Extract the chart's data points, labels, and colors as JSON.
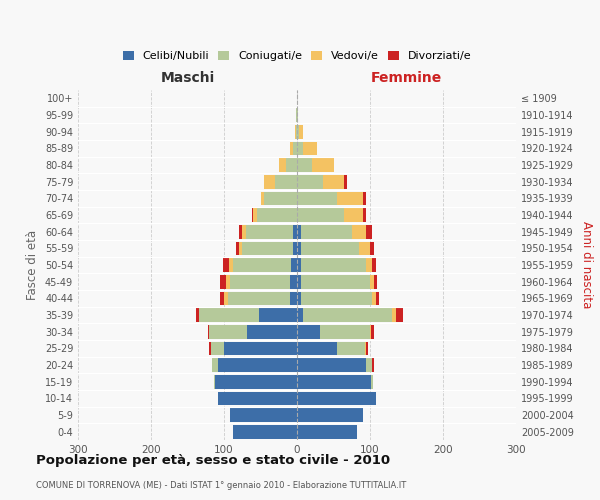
{
  "age_groups": [
    "0-4",
    "5-9",
    "10-14",
    "15-19",
    "20-24",
    "25-29",
    "30-34",
    "35-39",
    "40-44",
    "45-49",
    "50-54",
    "55-59",
    "60-64",
    "65-69",
    "70-74",
    "75-79",
    "80-84",
    "85-89",
    "90-94",
    "95-99",
    "100+"
  ],
  "birth_years": [
    "2005-2009",
    "2000-2004",
    "1995-1999",
    "1990-1994",
    "1985-1989",
    "1980-1984",
    "1975-1979",
    "1970-1974",
    "1965-1969",
    "1960-1964",
    "1955-1959",
    "1950-1954",
    "1945-1949",
    "1940-1944",
    "1935-1939",
    "1930-1934",
    "1925-1929",
    "1920-1924",
    "1915-1919",
    "1910-1914",
    "≤ 1909"
  ],
  "males": {
    "celibi": [
      88,
      92,
      108,
      112,
      108,
      100,
      68,
      52,
      10,
      10,
      8,
      5,
      5,
      0,
      0,
      0,
      0,
      0,
      0,
      0,
      0
    ],
    "coniugati": [
      0,
      0,
      0,
      2,
      8,
      18,
      52,
      82,
      85,
      82,
      80,
      70,
      65,
      55,
      45,
      30,
      15,
      5,
      2,
      1,
      0
    ],
    "vedovi": [
      0,
      0,
      0,
      0,
      0,
      0,
      0,
      0,
      5,
      5,
      5,
      5,
      5,
      5,
      5,
      15,
      10,
      5,
      1,
      0,
      0
    ],
    "divorziati": [
      0,
      0,
      0,
      0,
      0,
      2,
      2,
      5,
      5,
      8,
      8,
      4,
      4,
      2,
      0,
      0,
      0,
      0,
      0,
      0,
      0
    ]
  },
  "females": {
    "nubili": [
      82,
      90,
      108,
      102,
      95,
      55,
      32,
      8,
      5,
      5,
      5,
      5,
      5,
      0,
      0,
      0,
      0,
      0,
      0,
      0,
      0
    ],
    "coniugate": [
      0,
      0,
      0,
      2,
      8,
      38,
      68,
      122,
      98,
      95,
      90,
      80,
      70,
      65,
      55,
      35,
      20,
      8,
      3,
      1,
      0
    ],
    "vedove": [
      0,
      0,
      0,
      0,
      0,
      2,
      2,
      5,
      5,
      5,
      8,
      15,
      20,
      25,
      35,
      30,
      30,
      20,
      5,
      1,
      0
    ],
    "divorziate": [
      0,
      0,
      0,
      0,
      2,
      2,
      3,
      10,
      5,
      5,
      5,
      5,
      8,
      5,
      5,
      3,
      0,
      0,
      0,
      0,
      0
    ]
  },
  "colors": {
    "celibi_nubili": "#3d6ea8",
    "coniugati_e": "#b5c99a",
    "vedovi_e": "#f4c262",
    "divorziati_e": "#cc2222"
  },
  "title": "Popolazione per età, sesso e stato civile - 2010",
  "subtitle": "COMUNE DI TORRENOVA (ME) - Dati ISTAT 1° gennaio 2010 - Elaborazione TUTTITALIA.IT",
  "xlabel_left": "Maschi",
  "xlabel_right": "Femmine",
  "ylabel_left": "Fasce di età",
  "ylabel_right": "Anni di nascita",
  "xlim": 300,
  "legend_labels": [
    "Celibi/Nubili",
    "Coniugati/e",
    "Vedovi/e",
    "Divorziati/e"
  ],
  "bg_color": "#f8f8f8",
  "bar_height": 0.82
}
